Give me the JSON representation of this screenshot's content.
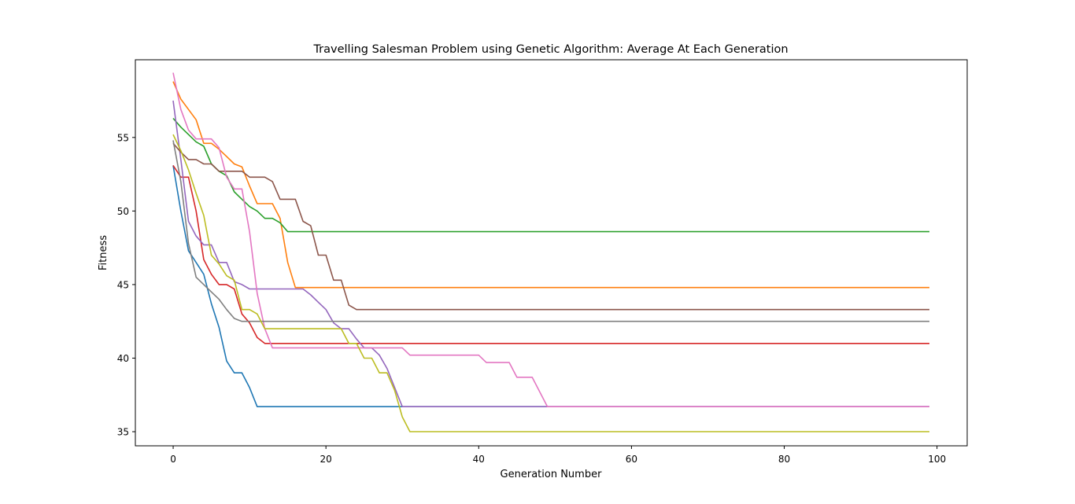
{
  "chart_data": {
    "type": "line",
    "title": "Travelling Salesman Problem using Genetic Algorithm: Average At Each Generation",
    "xlabel": "Generation Number",
    "ylabel": "Fitness",
    "xlim": [
      -4.95,
      103.95
    ],
    "ylim": [
      34.04,
      60.28
    ],
    "xticks": [
      0,
      20,
      40,
      60,
      80,
      100
    ],
    "yticks": [
      35,
      40,
      45,
      50,
      55
    ],
    "grid": false,
    "legend": "none",
    "series": [
      {
        "color": "#1f77b4",
        "points": [
          [
            0,
            53.1
          ],
          [
            1,
            50.0
          ],
          [
            2,
            47.3
          ],
          [
            3,
            46.5
          ],
          [
            4,
            45.7
          ],
          [
            5,
            43.7
          ],
          [
            6,
            42.1
          ],
          [
            7,
            39.8
          ],
          [
            8,
            39.0
          ],
          [
            9,
            39.0
          ],
          [
            10,
            38.0
          ],
          [
            11,
            36.7
          ],
          [
            99,
            36.7
          ]
        ]
      },
      {
        "color": "#ff7f0e",
        "points": [
          [
            0,
            58.8
          ],
          [
            1,
            57.6
          ],
          [
            2,
            56.9
          ],
          [
            3,
            56.2
          ],
          [
            4,
            54.6
          ],
          [
            5,
            54.6
          ],
          [
            6,
            54.2
          ],
          [
            7,
            53.7
          ],
          [
            8,
            53.2
          ],
          [
            9,
            53.0
          ],
          [
            10,
            51.7
          ],
          [
            11,
            50.5
          ],
          [
            12,
            50.5
          ],
          [
            13,
            50.5
          ],
          [
            14,
            49.5
          ],
          [
            15,
            46.5
          ],
          [
            16,
            44.8
          ],
          [
            99,
            44.8
          ]
        ]
      },
      {
        "color": "#2ca02c",
        "points": [
          [
            0,
            56.3
          ],
          [
            1,
            55.7
          ],
          [
            2,
            55.2
          ],
          [
            3,
            54.7
          ],
          [
            4,
            54.4
          ],
          [
            5,
            53.2
          ],
          [
            6,
            52.7
          ],
          [
            7,
            52.4
          ],
          [
            8,
            51.3
          ],
          [
            9,
            50.8
          ],
          [
            10,
            50.3
          ],
          [
            11,
            50.0
          ],
          [
            12,
            49.5
          ],
          [
            13,
            49.5
          ],
          [
            14,
            49.2
          ],
          [
            15,
            48.6
          ],
          [
            99,
            48.6
          ]
        ]
      },
      {
        "color": "#d62728",
        "points": [
          [
            0,
            53.1
          ],
          [
            1,
            52.3
          ],
          [
            2,
            52.3
          ],
          [
            3,
            50.0
          ],
          [
            4,
            46.7
          ],
          [
            5,
            45.7
          ],
          [
            6,
            45.0
          ],
          [
            7,
            45.0
          ],
          [
            8,
            44.7
          ],
          [
            9,
            43.0
          ],
          [
            10,
            42.4
          ],
          [
            11,
            41.4
          ],
          [
            12,
            41.0
          ],
          [
            99,
            41.0
          ]
        ]
      },
      {
        "color": "#9467bd",
        "points": [
          [
            0,
            57.5
          ],
          [
            1,
            53.5
          ],
          [
            2,
            49.3
          ],
          [
            3,
            48.3
          ],
          [
            4,
            47.7
          ],
          [
            5,
            47.7
          ],
          [
            6,
            46.5
          ],
          [
            7,
            46.5
          ],
          [
            8,
            45.2
          ],
          [
            9,
            45.0
          ],
          [
            10,
            44.7
          ],
          [
            17,
            44.7
          ],
          [
            18,
            44.3
          ],
          [
            19,
            43.8
          ],
          [
            20,
            43.3
          ],
          [
            21,
            42.4
          ],
          [
            22,
            42.0
          ],
          [
            23,
            42.0
          ],
          [
            24,
            41.3
          ],
          [
            25,
            40.7
          ],
          [
            26,
            40.7
          ],
          [
            27,
            40.2
          ],
          [
            28,
            39.3
          ],
          [
            29,
            38.0
          ],
          [
            30,
            36.7
          ],
          [
            99,
            36.7
          ]
        ]
      },
      {
        "color": "#8c564b",
        "points": [
          [
            0,
            54.6
          ],
          [
            1,
            54.0
          ],
          [
            2,
            53.5
          ],
          [
            3,
            53.5
          ],
          [
            4,
            53.2
          ],
          [
            5,
            53.2
          ],
          [
            6,
            52.7
          ],
          [
            7,
            52.7
          ],
          [
            8,
            52.7
          ],
          [
            9,
            52.7
          ],
          [
            10,
            52.3
          ],
          [
            11,
            52.3
          ],
          [
            12,
            52.3
          ],
          [
            13,
            52.0
          ],
          [
            14,
            50.8
          ],
          [
            15,
            50.8
          ],
          [
            16,
            50.8
          ],
          [
            17,
            49.3
          ],
          [
            18,
            49.0
          ],
          [
            19,
            47.0
          ],
          [
            20,
            47.0
          ],
          [
            21,
            45.3
          ],
          [
            22,
            45.3
          ],
          [
            23,
            43.6
          ],
          [
            24,
            43.3
          ],
          [
            99,
            43.3
          ]
        ]
      },
      {
        "color": "#e377c2",
        "points": [
          [
            0,
            59.4
          ],
          [
            1,
            56.9
          ],
          [
            2,
            55.5
          ],
          [
            3,
            54.9
          ],
          [
            4,
            54.9
          ],
          [
            5,
            54.9
          ],
          [
            6,
            54.3
          ],
          [
            7,
            52.3
          ],
          [
            8,
            51.5
          ],
          [
            9,
            51.5
          ],
          [
            10,
            48.6
          ],
          [
            11,
            44.4
          ],
          [
            12,
            42.0
          ],
          [
            13,
            40.7
          ],
          [
            14,
            40.7
          ],
          [
            30,
            40.7
          ],
          [
            31,
            40.2
          ],
          [
            40,
            40.2
          ],
          [
            41,
            39.7
          ],
          [
            44,
            39.7
          ],
          [
            45,
            38.7
          ],
          [
            47,
            38.7
          ],
          [
            49,
            36.7
          ],
          [
            99,
            36.7
          ]
        ]
      },
      {
        "color": "#7f7f7f",
        "points": [
          [
            0,
            54.8
          ],
          [
            1,
            52.0
          ],
          [
            2,
            47.8
          ],
          [
            3,
            45.5
          ],
          [
            4,
            45.0
          ],
          [
            5,
            44.5
          ],
          [
            6,
            44.0
          ],
          [
            7,
            43.3
          ],
          [
            8,
            42.7
          ],
          [
            9,
            42.5
          ],
          [
            99,
            42.5
          ]
        ]
      },
      {
        "color": "#bcbd22",
        "points": [
          [
            0,
            55.2
          ],
          [
            1,
            54.1
          ],
          [
            2,
            52.8
          ],
          [
            3,
            51.2
          ],
          [
            4,
            49.7
          ],
          [
            5,
            47.0
          ],
          [
            6,
            46.4
          ],
          [
            7,
            45.6
          ],
          [
            8,
            45.3
          ],
          [
            9,
            43.3
          ],
          [
            10,
            43.3
          ],
          [
            11,
            43.0
          ],
          [
            12,
            42.0
          ],
          [
            22,
            42.0
          ],
          [
            23,
            41.0
          ],
          [
            24,
            41.0
          ],
          [
            25,
            40.0
          ],
          [
            26,
            40.0
          ],
          [
            27,
            39.0
          ],
          [
            28,
            39.0
          ],
          [
            29,
            37.8
          ],
          [
            30,
            36.0
          ],
          [
            31,
            35.0
          ],
          [
            99,
            35.0
          ]
        ]
      }
    ]
  }
}
